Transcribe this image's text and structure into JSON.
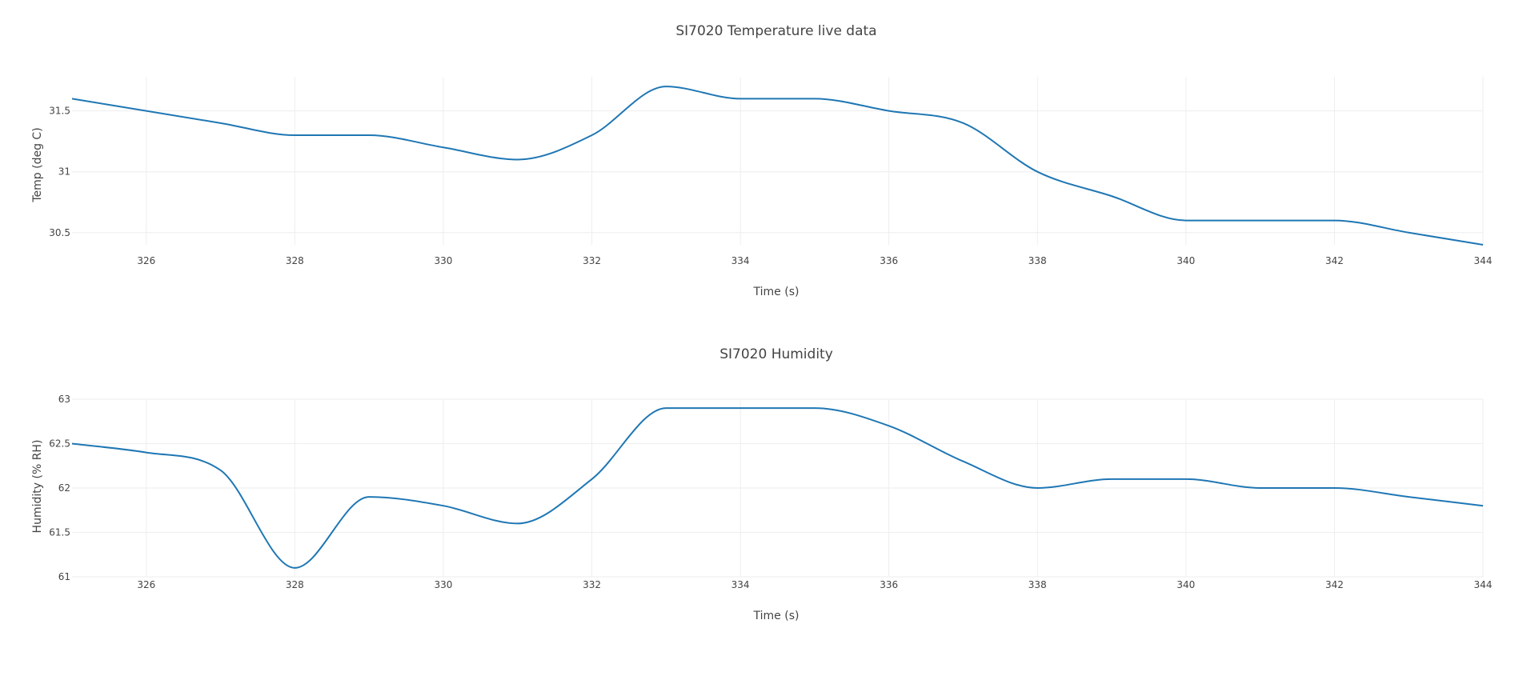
{
  "chart_data": [
    {
      "type": "line",
      "title": "SI7020 Temperature live data",
      "xlabel": "Time (s)",
      "ylabel": "Temp (deg C)",
      "xlim": [
        325,
        344
      ],
      "ylim": [
        30.4,
        31.78
      ],
      "x_ticks": [
        326,
        328,
        330,
        332,
        334,
        336,
        338,
        340,
        342,
        344
      ],
      "x_tick_labels": [
        "326",
        "328",
        "330",
        "332",
        "334",
        "336",
        "338",
        "340",
        "342",
        "344"
      ],
      "y_ticks": [
        30.5,
        31,
        31.5
      ],
      "y_tick_labels": [
        "30.5",
        "31",
        "31.5"
      ],
      "grid": true,
      "line_color": "#1f77b4",
      "series": [
        {
          "x": [
            325,
            326,
            327,
            328,
            329,
            330,
            331,
            332,
            333,
            334,
            335,
            336,
            337,
            338,
            339,
            340,
            341,
            342,
            343,
            344
          ],
          "values": [
            31.6,
            31.5,
            31.4,
            31.3,
            31.3,
            31.2,
            31.1,
            31.3,
            31.7,
            31.6,
            31.6,
            31.5,
            31.4,
            31.0,
            30.8,
            30.6,
            30.6,
            30.6,
            30.5,
            30.4
          ]
        }
      ]
    },
    {
      "type": "line",
      "title": "SI7020 Humidity",
      "xlabel": "Time (s)",
      "ylabel": "Humidity (% RH)",
      "xlim": [
        325,
        344
      ],
      "ylim": [
        61,
        63
      ],
      "x_ticks": [
        326,
        328,
        330,
        332,
        334,
        336,
        338,
        340,
        342,
        344
      ],
      "x_tick_labels": [
        "326",
        "328",
        "330",
        "332",
        "334",
        "336",
        "338",
        "340",
        "342",
        "344"
      ],
      "y_ticks": [
        61,
        61.5,
        62,
        62.5,
        63
      ],
      "y_tick_labels": [
        "61",
        "61.5",
        "62",
        "62.5",
        "63"
      ],
      "grid": true,
      "line_color": "#1f77b4",
      "series": [
        {
          "x": [
            325,
            326,
            327,
            328,
            329,
            330,
            331,
            332,
            333,
            334,
            335,
            336,
            337,
            338,
            339,
            340,
            341,
            342,
            343,
            344
          ],
          "values": [
            62.5,
            62.4,
            62.2,
            61.1,
            61.9,
            61.8,
            61.6,
            62.1,
            62.9,
            62.9,
            62.9,
            62.7,
            62.3,
            62.0,
            62.1,
            62.1,
            62.0,
            62.0,
            61.9,
            61.8
          ]
        }
      ]
    }
  ]
}
